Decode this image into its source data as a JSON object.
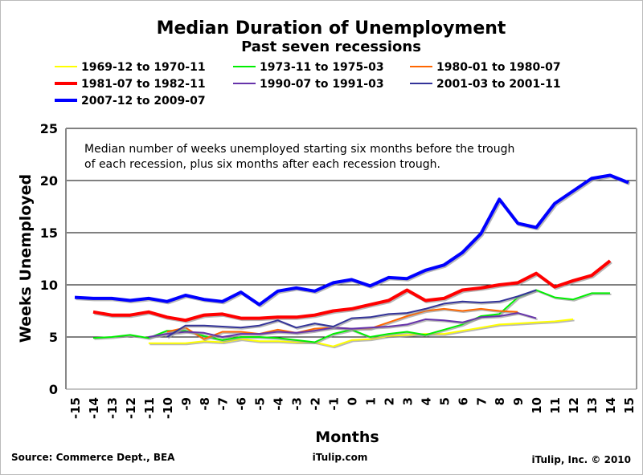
{
  "chart_data": {
    "type": "line",
    "title": "Median Duration of Unemployment",
    "subtitle": "Past seven recessions",
    "xlabel": "Months",
    "ylabel": "Weeks Unemployed",
    "xlim": [
      -15,
      15
    ],
    "ylim": [
      0,
      25
    ],
    "yticks": [
      0,
      5,
      10,
      15,
      20,
      25
    ],
    "xticks": [
      -15,
      -14,
      -13,
      -12,
      -11,
      -10,
      -9,
      -8,
      -7,
      -6,
      -5,
      -4,
      -3,
      -2,
      -1,
      0,
      1,
      2,
      3,
      4,
      5,
      6,
      7,
      8,
      9,
      10,
      11,
      12,
      13,
      14,
      15
    ],
    "grid": "horizontal",
    "legend_position": "top",
    "annotation": [
      "Median number of weeks unemployed starting six months before the trough",
      "of each recession, plus six months after each recession trough."
    ],
    "series": [
      {
        "name": "1969-12 to 1970-11",
        "color": "#ffff00",
        "width": 2,
        "start": -11,
        "values": [
          4.4,
          4.4,
          4.4,
          4.6,
          4.5,
          4.8,
          4.6,
          4.6,
          4.5,
          4.5,
          4.1,
          4.7,
          4.8,
          5.1,
          5.2,
          5.3,
          5.3,
          5.6,
          5.9,
          6.2,
          6.3,
          6.4,
          6.5,
          6.7
        ]
      },
      {
        "name": "1973-11 to 1975-03",
        "color": "#00ee00",
        "width": 2,
        "start": -14,
        "values": [
          4.9,
          5.0,
          5.2,
          4.9,
          5.6,
          5.6,
          5.1,
          4.7,
          5.0,
          5.0,
          4.9,
          4.7,
          4.5,
          5.3,
          5.7,
          5.0,
          5.3,
          5.5,
          5.2,
          5.7,
          6.2,
          7.0,
          7.2,
          8.8,
          9.5,
          8.8,
          8.6,
          9.2,
          9.2
        ]
      },
      {
        "name": "1980-01 to 1980-07",
        "color": "#ff6600",
        "width": 2,
        "start": -10,
        "values": [
          5.5,
          5.9,
          4.8,
          5.5,
          5.5,
          5.3,
          5.7,
          5.4,
          5.8,
          5.9,
          5.8,
          5.8,
          6.4,
          7.0,
          7.5,
          7.7,
          7.5,
          7.7,
          7.5,
          7.4
        ]
      },
      {
        "name": "1981-07 to 1982-11",
        "color": "#ff0000",
        "width": 4,
        "start": -14,
        "values": [
          7.4,
          7.1,
          7.1,
          7.4,
          6.9,
          6.6,
          7.1,
          7.2,
          6.8,
          6.8,
          6.9,
          6.9,
          7.1,
          7.5,
          7.7,
          8.1,
          8.5,
          9.5,
          8.5,
          8.7,
          9.5,
          9.7,
          10.0,
          10.2,
          11.1,
          9.8,
          10.4,
          10.9,
          12.3
        ]
      },
      {
        "name": "1990-07 to 1991-03",
        "color": "#6633aa",
        "width": 2,
        "start": -11,
        "values": [
          5.0,
          5.3,
          5.5,
          5.4,
          5.0,
          5.3,
          5.3,
          5.5,
          5.4,
          5.6,
          5.9,
          5.8,
          5.9,
          6.0,
          6.2,
          6.7,
          6.6,
          6.4,
          6.9,
          7.0,
          7.3,
          6.8
        ]
      },
      {
        "name": "2001-03 to 2001-11",
        "color": "#333399",
        "width": 2,
        "start": -10,
        "values": [
          5.0,
          6.1,
          6.1,
          6.0,
          5.9,
          6.1,
          6.6,
          5.9,
          6.3,
          6.0,
          6.8,
          6.9,
          7.2,
          7.3,
          7.7,
          8.2,
          8.4,
          8.3,
          8.4,
          8.9,
          9.5
        ]
      },
      {
        "name": "2007-12 to 2009-07",
        "color": "#0000ff",
        "width": 4,
        "start": -15,
        "values": [
          8.8,
          8.7,
          8.7,
          8.5,
          8.7,
          8.4,
          9.0,
          8.6,
          8.4,
          9.3,
          8.1,
          9.4,
          9.7,
          9.4,
          10.2,
          10.5,
          9.9,
          10.7,
          10.6,
          11.4,
          11.9,
          13.1,
          14.9,
          18.2,
          15.9,
          15.5,
          17.8,
          19.0,
          20.2,
          20.5,
          19.8
        ]
      }
    ]
  },
  "footer": {
    "source": "Source: Commerce Dept., BEA",
    "site": "iTulip.com",
    "copyright": "iTulip, Inc. © 2010"
  }
}
